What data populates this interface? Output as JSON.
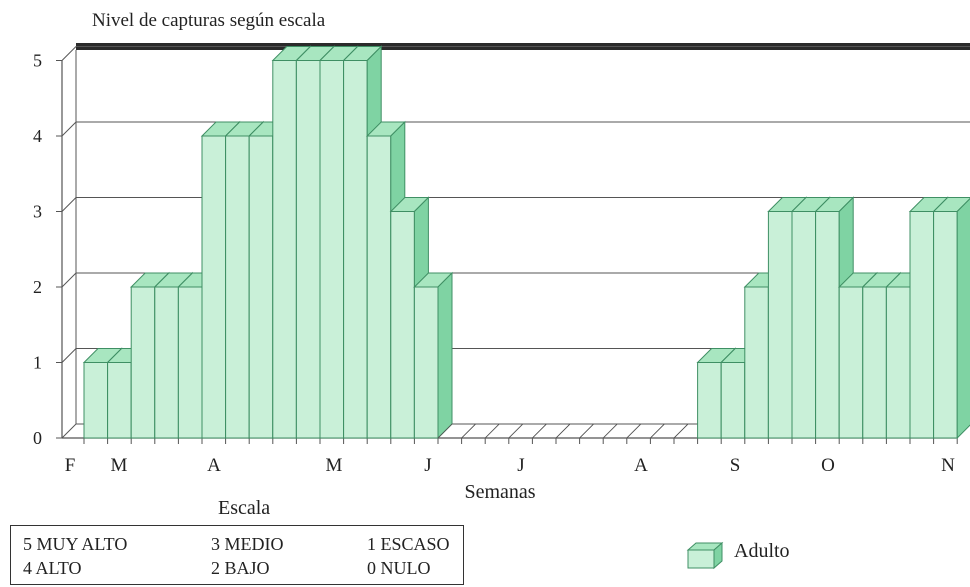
{
  "chart_data": {
    "type": "bar",
    "title": "Nivel de capturas según escala",
    "xlabel": "Semanas",
    "ylabel": "",
    "ylim": [
      0,
      5
    ],
    "yticks": [
      0,
      1,
      2,
      3,
      4,
      5
    ],
    "month_labels": [
      "F",
      "M",
      "A",
      "M",
      "J",
      "J",
      "A",
      "S",
      "O",
      "N"
    ],
    "series": [
      {
        "name": "Adulto",
        "values": [
          1,
          1,
          2,
          2,
          2,
          4,
          4,
          4,
          5,
          5,
          5,
          5,
          4,
          3,
          2,
          0,
          0,
          0,
          0,
          0,
          0,
          0,
          0,
          0,
          0,
          0,
          1,
          1,
          2,
          3,
          3,
          3,
          2,
          2,
          2,
          3,
          3
        ]
      }
    ],
    "grid": true,
    "legend": "bottom-right"
  },
  "escala": {
    "title": "Escala",
    "items": [
      "5 MUY ALTO",
      "3 MEDIO",
      "1 ESCASO",
      "4 ALTO",
      "2 BAJO",
      "0 NULO"
    ]
  },
  "legend": {
    "label": "Adulto"
  },
  "colors": {
    "bar_front": "#c9f0d8",
    "bar_side": "#7fd3a3",
    "bar_top": "#a8e6c0",
    "bar_edge": "#3f8f64",
    "grid": "#555555",
    "top_band": "#2b2b2b"
  }
}
